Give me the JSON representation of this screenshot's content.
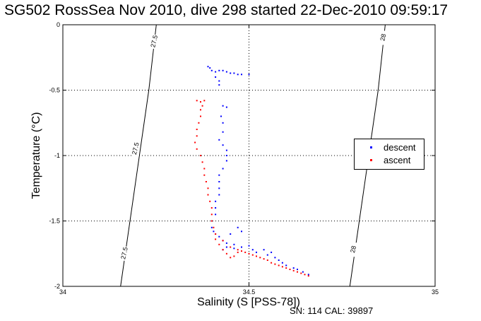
{
  "chart_data": {
    "type": "scatter",
    "title": "SG502 RossSea Nov 2010, dive 298 started 22-Dec-2010 09:59:17",
    "xlabel": "Salinity (S [PSS-78])",
    "ylabel": "Temperature (°C)",
    "xlim": [
      34,
      35
    ],
    "ylim": [
      -2,
      0
    ],
    "x_ticks": [
      "34",
      "34.5",
      "35"
    ],
    "y_ticks": [
      "0",
      "-0.5",
      "-1",
      "-1.5",
      "-2"
    ],
    "grid": "dotted, at ticks",
    "legend_position": "right",
    "isopycnals": [
      {
        "label": "27.5",
        "points": [
          [
            34.155,
            -2.0
          ],
          [
            34.231,
            -0.5
          ],
          [
            34.251,
            0.0
          ]
        ]
      },
      {
        "label": "28",
        "points": [
          [
            34.771,
            -2.0
          ],
          [
            34.847,
            -0.5
          ],
          [
            34.866,
            0.0
          ]
        ]
      }
    ],
    "isopycnal_labels": [
      {
        "text": "27.5",
        "x": 34.245,
        "y": -0.13
      },
      {
        "text": "27.5",
        "x": 34.195,
        "y": -0.95
      },
      {
        "text": "27.5",
        "x": 34.165,
        "y": -1.75
      },
      {
        "text": "28",
        "x": 34.86,
        "y": -0.1
      },
      {
        "text": "28",
        "x": 34.78,
        "y": -1.72
      }
    ],
    "series": [
      {
        "name": "descent",
        "color": "#0000ff",
        "points": [
          [
            34.39,
            -0.32
          ],
          [
            34.395,
            -0.33
          ],
          [
            34.4,
            -0.35
          ],
          [
            34.41,
            -0.36
          ],
          [
            34.42,
            -0.35
          ],
          [
            34.43,
            -0.35
          ],
          [
            34.44,
            -0.36
          ],
          [
            34.45,
            -0.37
          ],
          [
            34.46,
            -0.37
          ],
          [
            34.47,
            -0.38
          ],
          [
            34.48,
            -0.38
          ],
          [
            34.5,
            -0.38
          ],
          [
            34.41,
            -0.4
          ],
          [
            34.42,
            -0.43
          ],
          [
            34.42,
            -0.46
          ],
          [
            34.43,
            -0.62
          ],
          [
            34.44,
            -0.63
          ],
          [
            34.425,
            -0.7
          ],
          [
            34.43,
            -0.75
          ],
          [
            34.43,
            -0.82
          ],
          [
            34.42,
            -0.88
          ],
          [
            34.43,
            -0.92
          ],
          [
            34.44,
            -0.96
          ],
          [
            34.44,
            -1.0
          ],
          [
            34.44,
            -1.04
          ],
          [
            34.43,
            -1.1
          ],
          [
            34.42,
            -1.15
          ],
          [
            34.42,
            -1.2
          ],
          [
            34.42,
            -1.25
          ],
          [
            34.42,
            -1.3
          ],
          [
            34.41,
            -1.35
          ],
          [
            34.41,
            -1.4
          ],
          [
            34.41,
            -1.45
          ],
          [
            34.4,
            -1.5
          ],
          [
            34.4,
            -1.55
          ],
          [
            34.405,
            -1.58
          ],
          [
            34.41,
            -1.6
          ],
          [
            34.42,
            -1.62
          ],
          [
            34.43,
            -1.65
          ],
          [
            34.44,
            -1.67
          ],
          [
            34.45,
            -1.6
          ],
          [
            34.47,
            -1.55
          ],
          [
            34.48,
            -1.58
          ],
          [
            34.46,
            -1.68
          ],
          [
            34.43,
            -1.72
          ],
          [
            34.44,
            -1.7
          ],
          [
            34.46,
            -1.71
          ],
          [
            34.48,
            -1.7
          ],
          [
            34.5,
            -1.69
          ],
          [
            34.51,
            -1.72
          ],
          [
            34.52,
            -1.74
          ],
          [
            34.54,
            -1.72
          ],
          [
            34.55,
            -1.76
          ],
          [
            34.56,
            -1.74
          ],
          [
            34.57,
            -1.78
          ],
          [
            34.58,
            -1.8
          ],
          [
            34.59,
            -1.82
          ],
          [
            34.6,
            -1.84
          ],
          [
            34.62,
            -1.86
          ],
          [
            34.63,
            -1.87
          ],
          [
            34.645,
            -1.89
          ],
          [
            34.66,
            -1.91
          ]
        ]
      },
      {
        "name": "ascent",
        "color": "#ff0000",
        "points": [
          [
            34.36,
            -0.58
          ],
          [
            34.37,
            -0.59
          ],
          [
            34.38,
            -0.58
          ],
          [
            34.375,
            -0.62
          ],
          [
            34.37,
            -0.65
          ],
          [
            34.37,
            -0.7
          ],
          [
            34.365,
            -0.75
          ],
          [
            34.36,
            -0.8
          ],
          [
            34.36,
            -0.85
          ],
          [
            34.355,
            -0.9
          ],
          [
            34.36,
            -0.95
          ],
          [
            34.37,
            -1.0
          ],
          [
            34.375,
            -1.05
          ],
          [
            34.38,
            -1.1
          ],
          [
            34.38,
            -1.15
          ],
          [
            34.385,
            -1.2
          ],
          [
            34.39,
            -1.25
          ],
          [
            34.39,
            -1.3
          ],
          [
            34.395,
            -1.35
          ],
          [
            34.4,
            -1.4
          ],
          [
            34.4,
            -1.45
          ],
          [
            34.4,
            -1.5
          ],
          [
            34.405,
            -1.55
          ],
          [
            34.41,
            -1.6
          ],
          [
            34.41,
            -1.64
          ],
          [
            34.42,
            -1.68
          ],
          [
            34.43,
            -1.72
          ],
          [
            34.44,
            -1.75
          ],
          [
            34.45,
            -1.78
          ],
          [
            34.46,
            -1.77
          ],
          [
            34.47,
            -1.74
          ],
          [
            34.48,
            -1.73
          ],
          [
            34.5,
            -1.75
          ],
          [
            34.52,
            -1.77
          ],
          [
            34.54,
            -1.79
          ],
          [
            34.56,
            -1.82
          ],
          [
            34.58,
            -1.84
          ],
          [
            34.6,
            -1.86
          ],
          [
            34.62,
            -1.88
          ],
          [
            34.64,
            -1.9
          ],
          [
            34.66,
            -1.92
          ],
          [
            34.43,
            -1.65
          ],
          [
            34.45,
            -1.7
          ],
          [
            34.47,
            -1.72
          ],
          [
            34.49,
            -1.74
          ],
          [
            34.51,
            -1.76
          ],
          [
            34.53,
            -1.78
          ],
          [
            34.55,
            -1.8
          ],
          [
            34.57,
            -1.83
          ],
          [
            34.59,
            -1.85
          ],
          [
            34.61,
            -1.87
          ],
          [
            34.63,
            -1.89
          ],
          [
            34.65,
            -1.91
          ]
        ]
      }
    ]
  },
  "footnote": "SN: 114  CAL: 39897"
}
